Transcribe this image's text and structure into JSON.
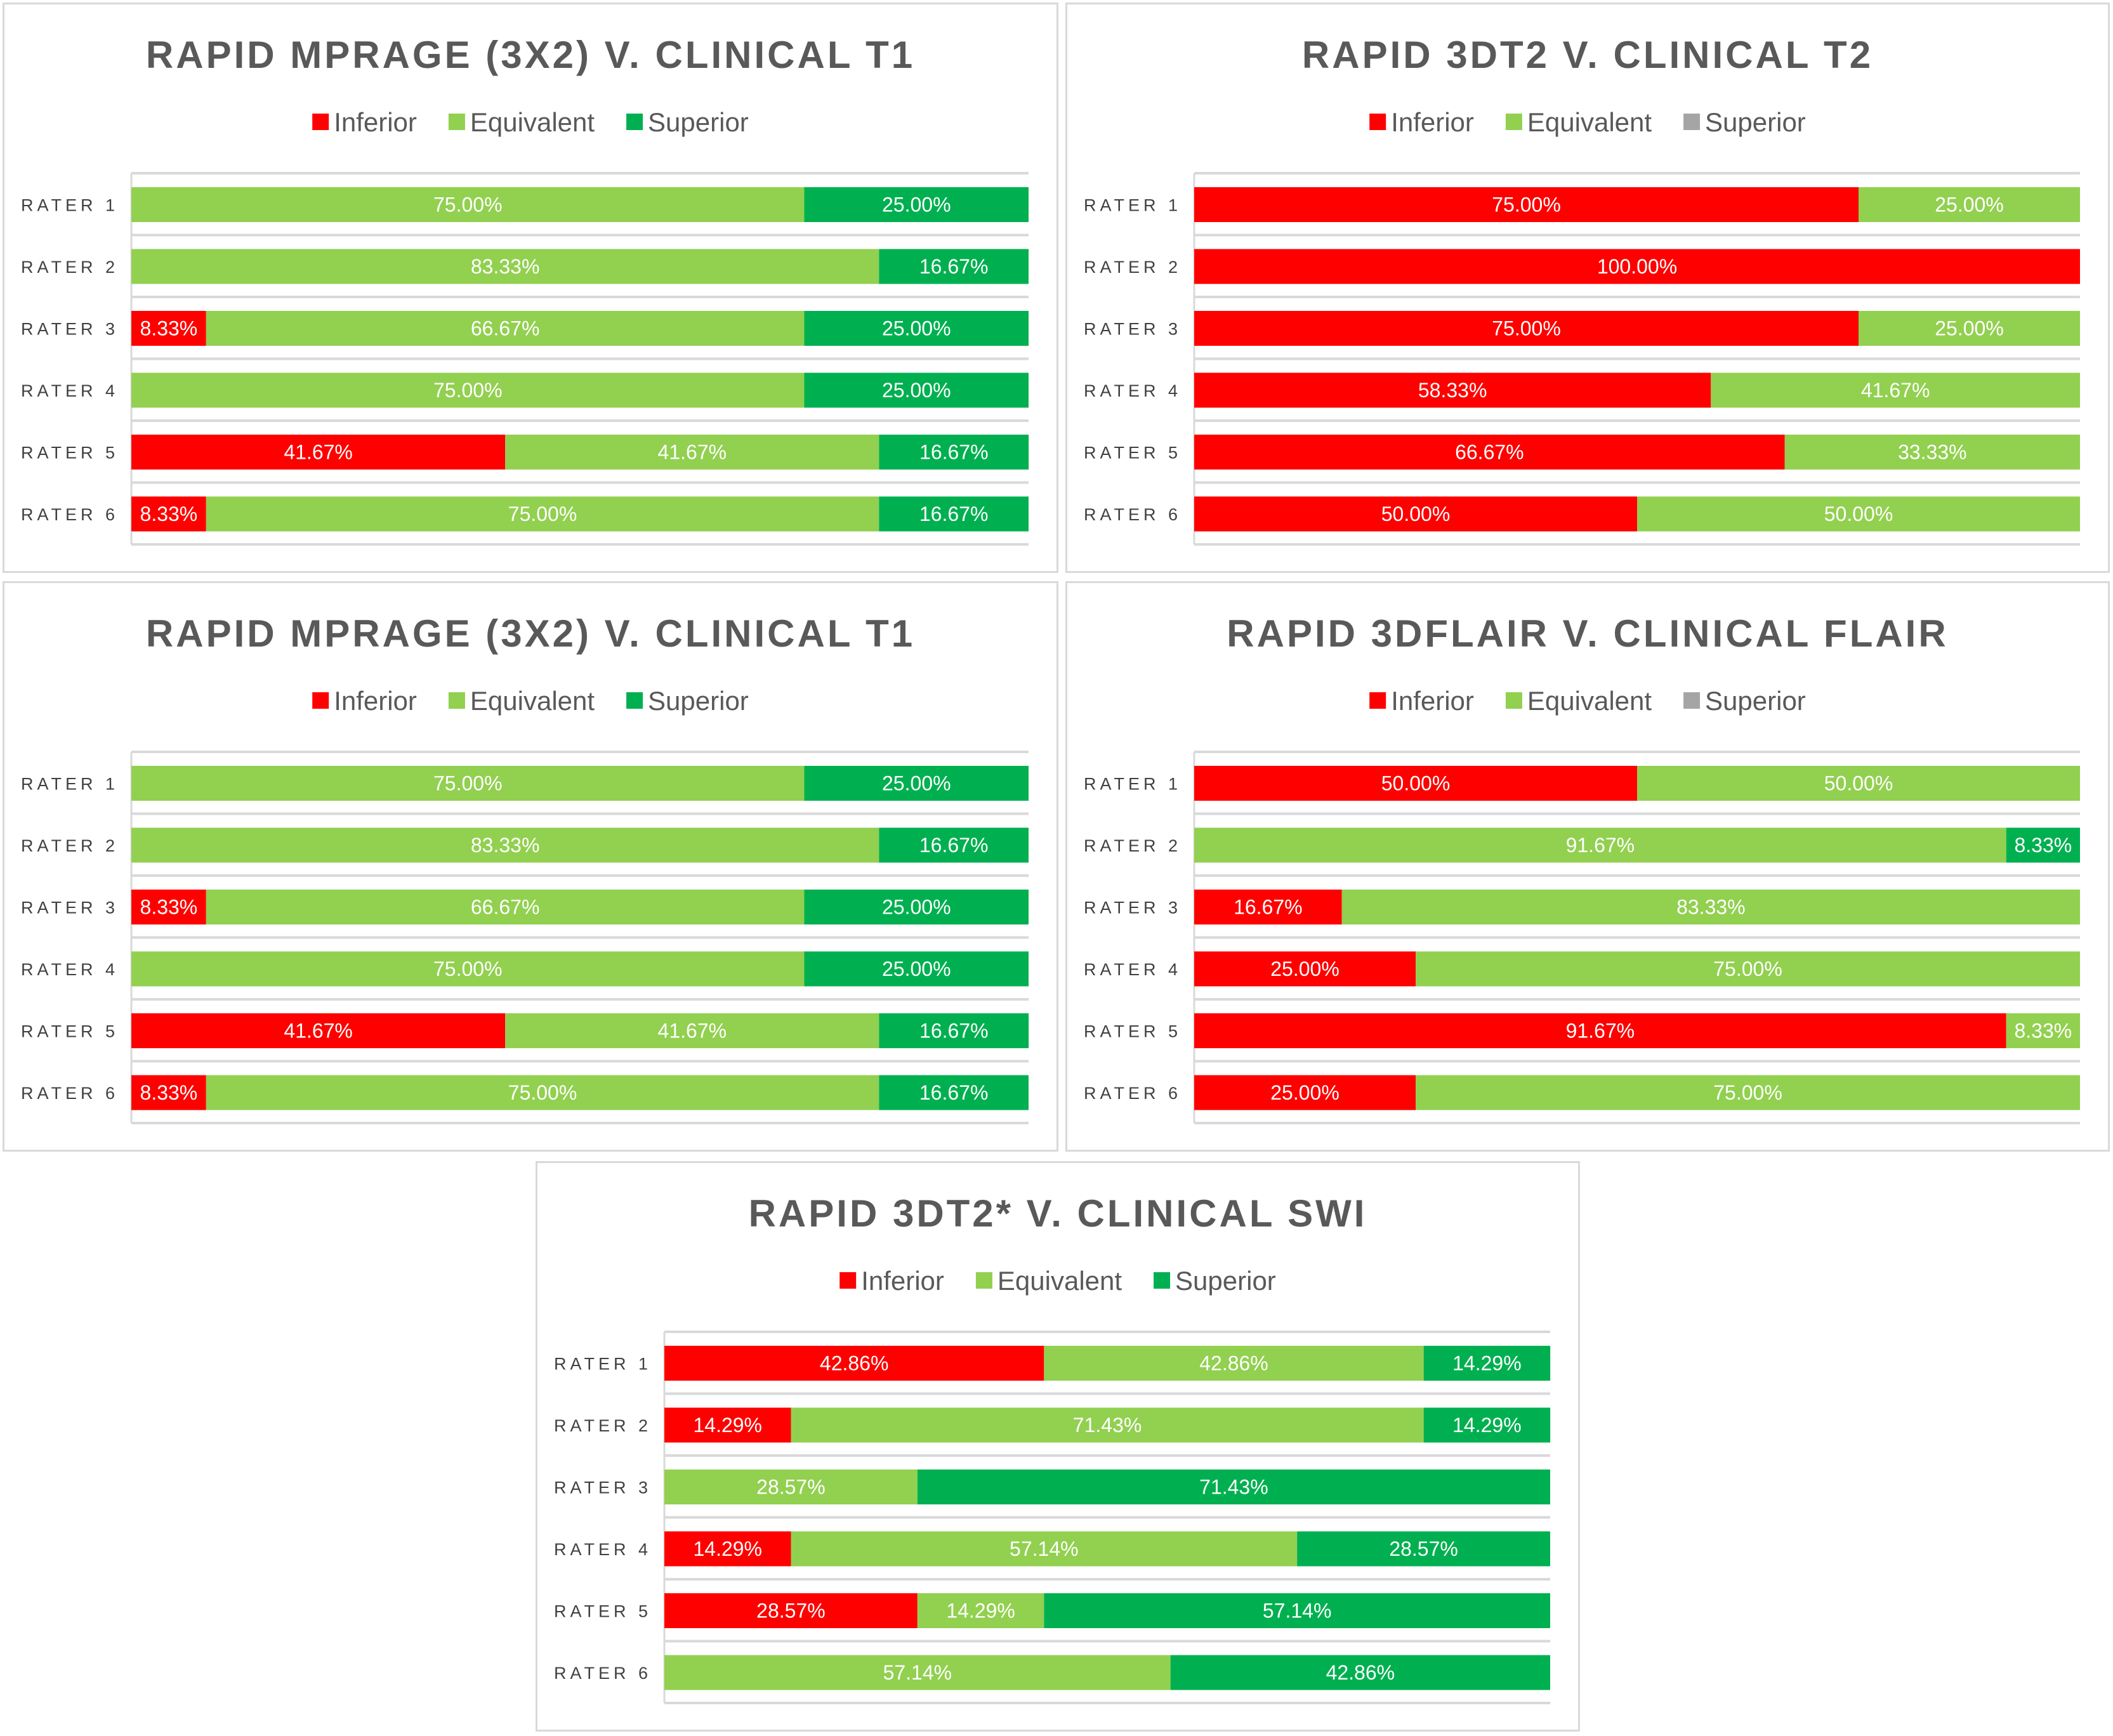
{
  "chart_data": [
    {
      "type": "bar",
      "orientation": "horizontal-stacked-100",
      "title": "RAPID MPRAGE (3X2) V. CLINICAL T1",
      "categories": [
        "RATER 1",
        "RATER 2",
        "RATER 3",
        "RATER 4",
        "RATER 5",
        "RATER 6"
      ],
      "legend": [
        "Inferior",
        "Equivalent",
        "Superior"
      ],
      "legend_colors": [
        "#FF0000",
        "#92D050",
        "#00B050"
      ],
      "bar_colors": [
        [
          "#FF0000",
          "#92D050",
          "#00B050"
        ]
      ],
      "series": [
        {
          "name": "Inferior",
          "values": [
            0,
            0,
            8.33,
            0,
            41.67,
            8.33
          ]
        },
        {
          "name": "Equivalent",
          "values": [
            75,
            83.33,
            66.67,
            75,
            41.67,
            75
          ]
        },
        {
          "name": "Superior",
          "values": [
            25,
            16.67,
            25,
            25,
            16.67,
            16.67
          ]
        }
      ],
      "xlim": [
        0,
        100
      ],
      "legend_position": "top",
      "grid": true
    },
    {
      "type": "bar",
      "orientation": "horizontal-stacked-100",
      "title": "RAPID 3DT2 V. CLINICAL T2",
      "categories": [
        "RATER 1",
        "RATER 2",
        "RATER 3",
        "RATER 4",
        "RATER 5",
        "RATER 6"
      ],
      "legend": [
        "Inferior",
        "Equivalent",
        "Superior"
      ],
      "legend_colors": [
        "#FF0000",
        "#92D050",
        "#A5A5A5"
      ],
      "bar_colors": [
        [
          "#FF0000",
          "#92D050",
          "#00B050"
        ]
      ],
      "series": [
        {
          "name": "Inferior",
          "values": [
            75,
            100,
            75,
            58.33,
            66.67,
            50
          ]
        },
        {
          "name": "Equivalent",
          "values": [
            25,
            0,
            25,
            41.67,
            33.33,
            50
          ]
        },
        {
          "name": "Superior",
          "values": [
            0,
            0,
            0,
            0,
            0,
            0
          ]
        }
      ],
      "xlim": [
        0,
        100
      ],
      "legend_position": "top",
      "grid": true
    },
    {
      "type": "bar",
      "orientation": "horizontal-stacked-100",
      "title": "RAPID MPRAGE (3X2) V. CLINICAL T1",
      "categories": [
        "RATER 1",
        "RATER 2",
        "RATER 3",
        "RATER 4",
        "RATER 5",
        "RATER 6"
      ],
      "legend": [
        "Inferior",
        "Equivalent",
        "Superior"
      ],
      "legend_colors": [
        "#FF0000",
        "#92D050",
        "#00B050"
      ],
      "bar_colors": [
        [
          "#FF0000",
          "#92D050",
          "#00B050"
        ]
      ],
      "series": [
        {
          "name": "Inferior",
          "values": [
            0,
            0,
            8.33,
            0,
            41.67,
            8.33
          ]
        },
        {
          "name": "Equivalent",
          "values": [
            75,
            83.33,
            66.67,
            75,
            41.67,
            75
          ]
        },
        {
          "name": "Superior",
          "values": [
            25,
            16.67,
            25,
            25,
            16.67,
            16.67
          ]
        }
      ],
      "xlim": [
        0,
        100
      ],
      "legend_position": "top",
      "grid": true
    },
    {
      "type": "bar",
      "orientation": "horizontal-stacked-100",
      "title": "RAPID 3DFLAIR V. CLINICAL FLAIR",
      "categories": [
        "RATER 1",
        "RATER 2",
        "RATER 3",
        "RATER 4",
        "RATER 5",
        "RATER 6"
      ],
      "legend": [
        "Inferior",
        "Equivalent",
        "Superior"
      ],
      "legend_colors": [
        "#FF0000",
        "#92D050",
        "#A5A5A5"
      ],
      "bar_colors": [
        [
          "#FF0000",
          "#92D050",
          "#00B050"
        ]
      ],
      "series": [
        {
          "name": "Inferior",
          "values": [
            50,
            0,
            16.67,
            25,
            91.67,
            25
          ]
        },
        {
          "name": "Equivalent",
          "values": [
            50,
            91.67,
            83.33,
            75,
            0,
            75
          ]
        },
        {
          "name": "Superior",
          "values": [
            0,
            8.33,
            0,
            0,
            0,
            0
          ]
        },
        {
          "name": "Equivalent (trailing)",
          "values": [
            0,
            0,
            0,
            0,
            8.33,
            0
          ]
        }
      ],
      "xlim": [
        0,
        100
      ],
      "legend_position": "top",
      "grid": true
    },
    {
      "type": "bar",
      "orientation": "horizontal-stacked-100",
      "title": "RAPID 3DT2* V. CLINICAL SWI",
      "categories": [
        "RATER 1",
        "RATER 2",
        "RATER 3",
        "RATER 4",
        "RATER 5",
        "RATER 6"
      ],
      "legend": [
        "Inferior",
        "Equivalent",
        "Superior"
      ],
      "legend_colors": [
        "#FF0000",
        "#92D050",
        "#00B050"
      ],
      "bar_colors": [
        [
          "#FF0000",
          "#92D050",
          "#00B050"
        ]
      ],
      "series": [
        {
          "name": "Inferior",
          "values": [
            42.86,
            14.29,
            0,
            14.29,
            28.57,
            0
          ]
        },
        {
          "name": "Equivalent",
          "values": [
            42.86,
            71.43,
            28.57,
            57.14,
            14.29,
            57.14
          ]
        },
        {
          "name": "Superior",
          "values": [
            14.29,
            14.29,
            71.43,
            28.57,
            57.14,
            42.86
          ]
        }
      ],
      "xlim": [
        0,
        100
      ],
      "legend_position": "top",
      "grid": true
    }
  ],
  "labels": {}
}
